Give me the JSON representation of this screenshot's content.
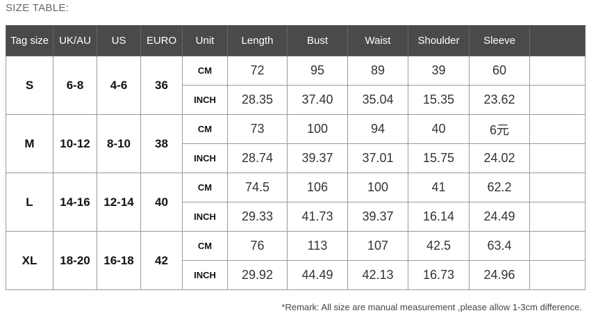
{
  "title": "SIZE TABLE:",
  "headers": [
    "Tag size",
    "UK/AU",
    "US",
    "EURO",
    "Unit",
    "Length",
    "Bust",
    "Waist",
    "Shoulder",
    "Sleeve",
    ""
  ],
  "rows": [
    {
      "tag": "S",
      "uk": "6-8",
      "us": "4-6",
      "euro": "36",
      "cm": {
        "unit": "CM",
        "values": [
          "72",
          "95",
          "89",
          "39",
          "60"
        ]
      },
      "inch": {
        "unit": "INCH",
        "values": [
          "28.35",
          "37.40",
          "35.04",
          "15.35",
          "23.62"
        ]
      }
    },
    {
      "tag": "M",
      "uk": "10-12",
      "us": "8-10",
      "euro": "38",
      "cm": {
        "unit": "CM",
        "values": [
          "73",
          "100",
          "94",
          "40",
          "6元"
        ]
      },
      "inch": {
        "unit": "INCH",
        "values": [
          "28.74",
          "39.37",
          "37.01",
          "15.75",
          "24.02"
        ]
      }
    },
    {
      "tag": "L",
      "uk": "14-16",
      "us": "12-14",
      "euro": "40",
      "cm": {
        "unit": "CM",
        "values": [
          "74.5",
          "106",
          "100",
          "41",
          "62.2"
        ]
      },
      "inch": {
        "unit": "INCH",
        "values": [
          "29.33",
          "41.73",
          "39.37",
          "16.14",
          "24.49"
        ]
      }
    },
    {
      "tag": "XL",
      "uk": "18-20",
      "us": "16-18",
      "euro": "42",
      "cm": {
        "unit": "CM",
        "values": [
          "76",
          "113",
          "107",
          "42.5",
          "63.4"
        ]
      },
      "inch": {
        "unit": "INCH",
        "values": [
          "29.92",
          "44.49",
          "42.13",
          "16.73",
          "24.96"
        ]
      }
    }
  ],
  "remark": "*Remark: All size are manual measurement ,please allow 1-3cm difference."
}
